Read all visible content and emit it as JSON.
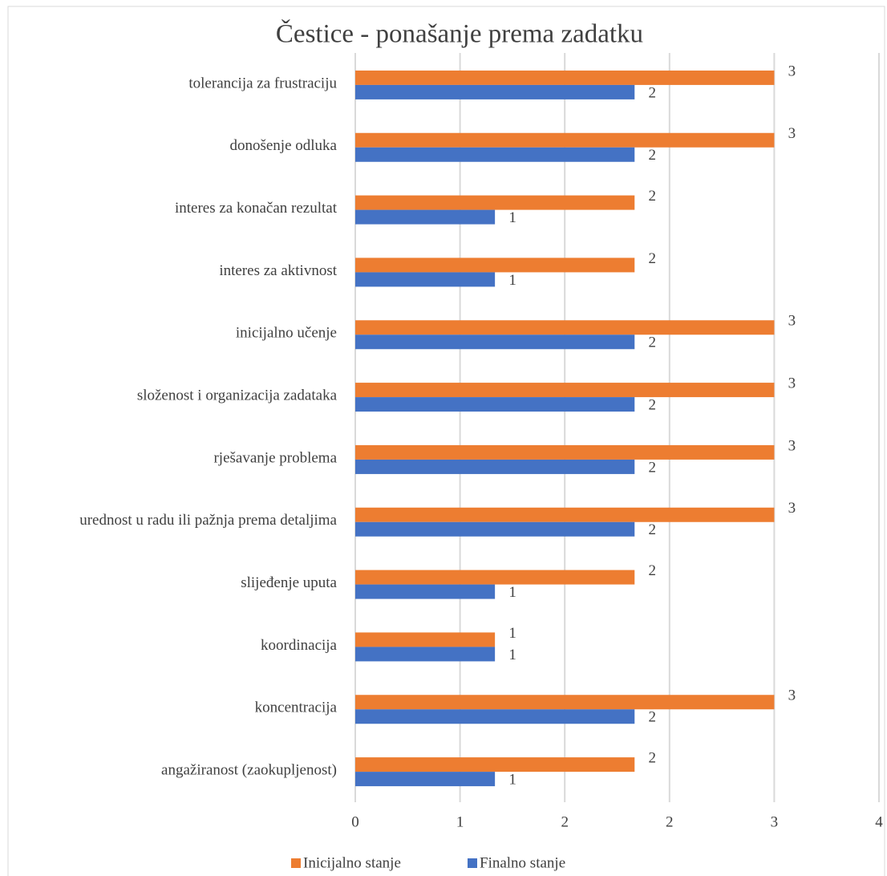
{
  "chart_data": {
    "type": "hbar",
    "title": "Čestice - ponašanje prema zadatku",
    "categories": [
      "tolerancija za frustraciju",
      "donošenje odluka",
      "interes za konačan rezultat",
      "interes za aktivnost",
      "inicijalno učenje",
      "složenost i organizacija zadataka",
      "rješavanje problema",
      "urednost u radu ili pažnja prema detaljima",
      "slijeđenje uputa",
      "koordinacija",
      "koncentracija",
      "angažiranost (zaokupljenost)"
    ],
    "series": [
      {
        "name": "Inicijalno stanje",
        "color": "#ed7d31",
        "values": [
          3,
          3,
          2,
          2,
          3,
          3,
          3,
          3,
          2,
          1,
          3,
          2
        ]
      },
      {
        "name": "Finalno stanje",
        "color": "#4472c4",
        "values": [
          2,
          2,
          1,
          1,
          2,
          2,
          2,
          2,
          1,
          1,
          2,
          1
        ]
      }
    ],
    "xlim": [
      0,
      3.75
    ],
    "xticks": [
      0,
      {
        "value": 0.75,
        "label": "1"
      },
      {
        "value": 1.5,
        "label": "2"
      },
      {
        "value": 2.25,
        "label": "2"
      },
      3,
      {
        "value": 3.75,
        "label": "4"
      }
    ],
    "grid": true,
    "legend": "bottom"
  }
}
